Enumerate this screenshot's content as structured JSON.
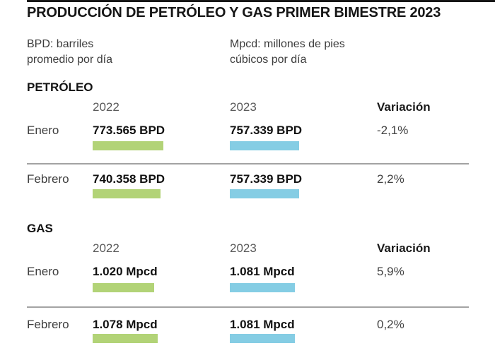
{
  "colors": {
    "bar_2022": "#b2d377",
    "bar_2023": "#85cde4",
    "top_rule": "#161616"
  },
  "header": {
    "title": "PRODUCCIÓN DE PETRÓLEO Y GAS PRIMER BIMESTRE 2023",
    "legend_bpd": {
      "line1": "BPD: barriles",
      "line2": "promedio por día"
    },
    "legend_mpcd": {
      "line1": "Mpcd: millones de pies",
      "line2": "cúbicos por día"
    }
  },
  "sections": [
    {
      "name": "PETRÓLEO",
      "columns": {
        "y2022": "2022",
        "y2023": "2023",
        "variation": "Variación"
      },
      "rows": [
        {
          "month": "Enero",
          "v2022": "773.565 BPD",
          "v2023": "757.339 BPD",
          "variation": "-2,1%",
          "bar2022": 100,
          "bar2023": 98
        },
        {
          "month": "Febrero",
          "v2022": "740.358 BPD",
          "v2023": "757.339 BPD",
          "variation": "2,2%",
          "bar2022": 96,
          "bar2023": 98
        }
      ]
    },
    {
      "name": "GAS",
      "columns": {
        "y2022": "2022",
        "y2023": "2023",
        "variation": "Variación"
      },
      "rows": [
        {
          "month": "Enero",
          "v2022": "1.020 Mpcd",
          "v2023": "1.081 Mpcd",
          "variation": "5,9%",
          "bar2022": 87,
          "bar2023": 92
        },
        {
          "month": "Febrero",
          "v2022": "1.078 Mpcd",
          "v2023": "1.081 Mpcd",
          "variation": "0,2%",
          "bar2022": 92,
          "bar2023": 92
        }
      ]
    }
  ],
  "chart_data": [
    {
      "type": "bar",
      "title": "PETRÓLEO — PRODUCCIÓN PRIMER BIMESTRE 2023",
      "unit": "BPD (barriles promedio por día)",
      "categories": [
        "Enero",
        "Febrero"
      ],
      "series": [
        {
          "name": "2022",
          "values": [
            773565,
            740358
          ]
        },
        {
          "name": "2023",
          "values": [
            757339,
            757339
          ]
        }
      ],
      "variation_pct": [
        -2.1,
        2.2
      ],
      "legend_position": "column-headers",
      "grid": false
    },
    {
      "type": "bar",
      "title": "GAS — PRODUCCIÓN PRIMER BIMESTRE 2023",
      "unit": "Mpcd (millones de pies cúbicos por día)",
      "categories": [
        "Enero",
        "Febrero"
      ],
      "series": [
        {
          "name": "2022",
          "values": [
            1020,
            1078
          ]
        },
        {
          "name": "2023",
          "values": [
            1081,
            1081
          ]
        }
      ],
      "variation_pct": [
        5.9,
        0.2
      ],
      "legend_position": "column-headers",
      "grid": false
    }
  ]
}
